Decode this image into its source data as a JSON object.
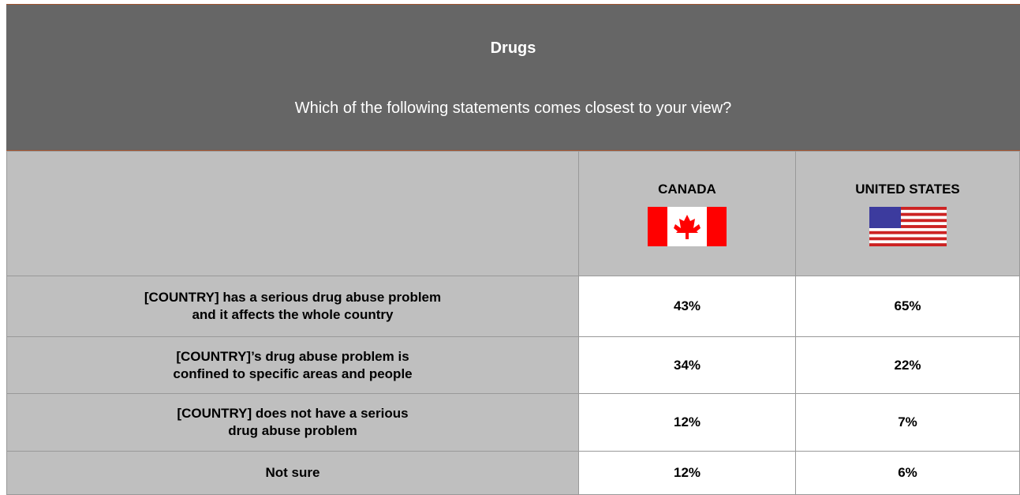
{
  "header": {
    "title": "Drugs",
    "subtitle": "Which of the following statements comes closest to your view?"
  },
  "table": {
    "columns": [
      "CANADA",
      "UNITED STATES"
    ],
    "rows": [
      {
        "label": [
          "[COUNTRY] has a serious drug abuse problem",
          "and it affects the whole country"
        ],
        "values": [
          "43%",
          "65%"
        ]
      },
      {
        "label": [
          "[COUNTRY]’s drug abuse problem is",
          "confined to specific areas and people"
        ],
        "values": [
          "34%",
          "22%"
        ]
      },
      {
        "label": [
          "[COUNTRY] does not have a serious",
          "drug abuse problem"
        ],
        "values": [
          "12%",
          "7%"
        ]
      },
      {
        "label": [
          "Not sure"
        ],
        "values": [
          "12%",
          "6%"
        ]
      }
    ]
  }
}
